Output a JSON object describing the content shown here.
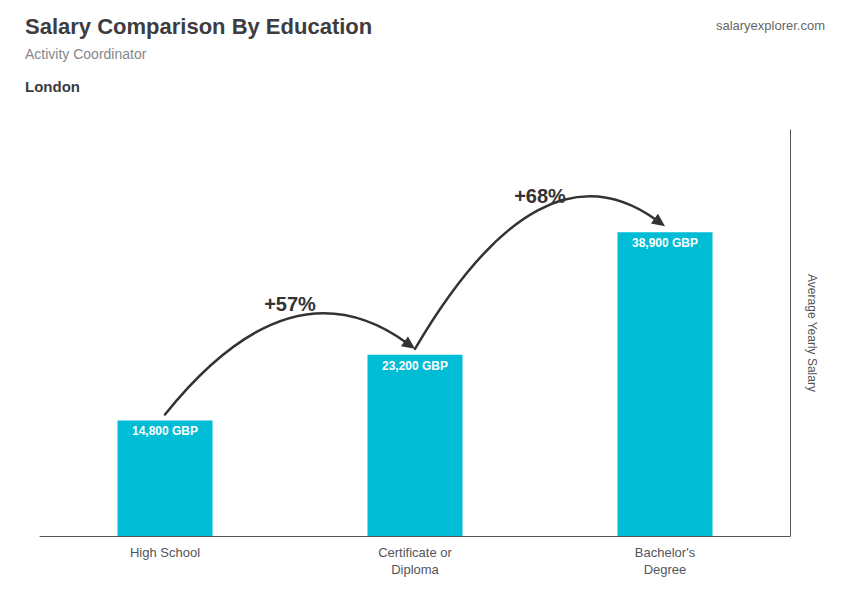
{
  "chart_data": {
    "type": "bar",
    "title": "Salary Comparison By Education",
    "subtitle": "Activity Coordinator",
    "location": "London",
    "source": "salaryexplorer.com",
    "ylabel": "Average Yearly Salary",
    "categories": [
      "High School",
      "Certificate or\nDiploma",
      "Bachelor's\nDegree"
    ],
    "values": [
      14800,
      23200,
      38900
    ],
    "value_labels": [
      "14,800 GBP",
      "23,200 GBP",
      "38,900 GBP"
    ],
    "data_labels": true,
    "annotations": [
      "+57%",
      "+68%"
    ],
    "color": "#00bcd4",
    "ylim": [
      0,
      52000
    ],
    "grid": false,
    "tick_labels": "x"
  }
}
